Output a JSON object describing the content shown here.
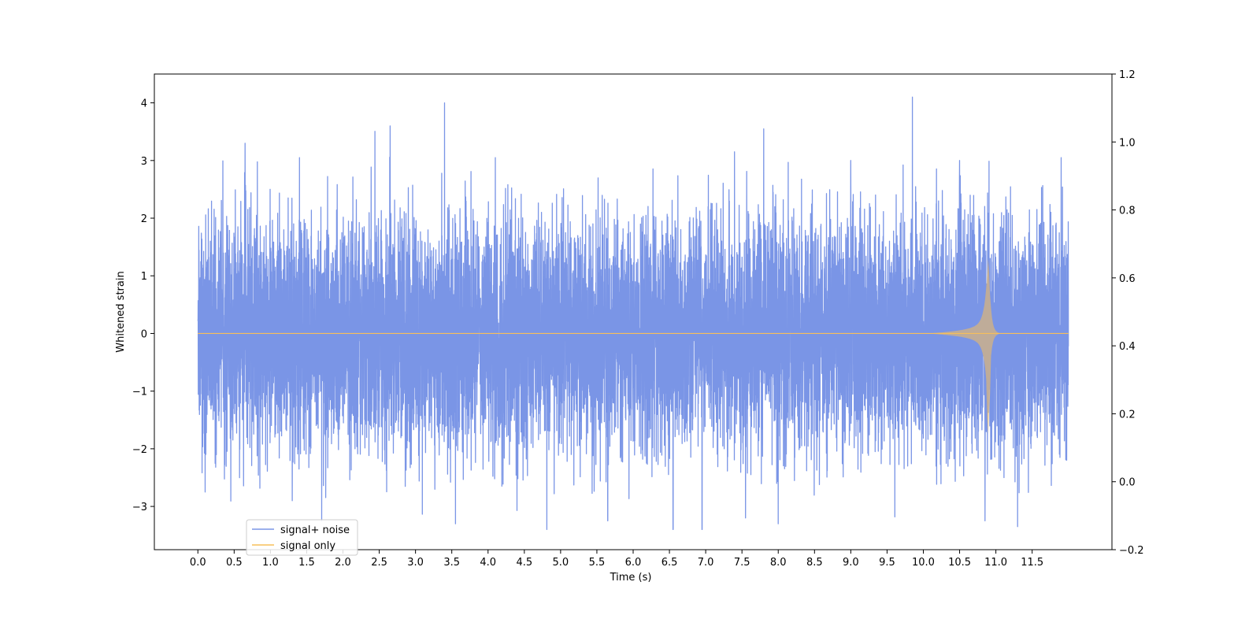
{
  "chart_data": {
    "type": "line",
    "title": "",
    "xlabel": "Time (s)",
    "ylabel": "Whitened strain",
    "xlim": [
      -0.6,
      12.6
    ],
    "ylim": [
      -3.75,
      4.5
    ],
    "y2lim": [
      -0.2,
      1.2
    ],
    "xticks": [
      0.0,
      0.5,
      1.0,
      1.5,
      2.0,
      2.5,
      3.0,
      3.5,
      4.0,
      4.5,
      5.0,
      5.5,
      6.0,
      6.5,
      7.0,
      7.5,
      8.0,
      8.5,
      9.0,
      9.5,
      10.0,
      10.5,
      11.0,
      11.5
    ],
    "xtick_labels": [
      "0.0",
      "0.5",
      "1.0",
      "1.5",
      "2.0",
      "2.5",
      "3.0",
      "3.5",
      "4.0",
      "4.5",
      "5.0",
      "5.5",
      "6.0",
      "6.5",
      "7.0",
      "7.5",
      "8.0",
      "8.5",
      "9.0",
      "9.5",
      "10.0",
      "10.5",
      "11.0",
      "11.5"
    ],
    "yticks": [
      -3,
      -2,
      -1,
      0,
      1,
      2,
      3,
      4
    ],
    "ytick_labels": [
      "−3",
      "−2",
      "−1",
      "0",
      "1",
      "2",
      "3",
      "4"
    ],
    "y2ticks": [
      -0.2,
      0.0,
      0.2,
      0.4,
      0.6,
      0.8,
      1.0,
      1.2
    ],
    "y2tick_labels": [
      "−0.2",
      "0.0",
      "0.2",
      "0.4",
      "0.6",
      "0.8",
      "1.0",
      "1.2"
    ],
    "grid": false,
    "legend_placement": "lower-left",
    "series": [
      {
        "name": "signal+ noise",
        "color": "#7a95e6",
        "t_range": [
          0.0,
          12.0
        ],
        "envelope_typical": 1.8,
        "min": -3.4,
        "max": 4.1,
        "spikes": [
          [
            0.65,
            3.3
          ],
          [
            1.4,
            3.05
          ],
          [
            2.65,
            3.6
          ],
          [
            3.4,
            4.0
          ],
          [
            4.1,
            3.05
          ],
          [
            7.8,
            3.55
          ],
          [
            9.85,
            4.1
          ],
          [
            9.0,
            3.0
          ],
          [
            10.5,
            3.0
          ],
          [
            11.9,
            3.05
          ],
          [
            3.55,
            -3.3
          ],
          [
            6.55,
            -3.4
          ],
          [
            6.95,
            -3.4
          ],
          [
            7.55,
            -3.2
          ],
          [
            8.0,
            -3.3
          ],
          [
            10.85,
            -3.25
          ],
          [
            11.3,
            -3.35
          ],
          [
            5.65,
            -3.25
          ],
          [
            0.1,
            -2.75
          ],
          [
            1.3,
            -2.9
          ]
        ]
      },
      {
        "name": "signal only",
        "color": "#f7bf5a",
        "t_range": [
          0.0,
          12.0
        ],
        "chirp_peak_time": 10.9,
        "chirp_peak_amplitude": 1.3,
        "amplitude_at_6s": 0.03,
        "amplitude_at_9s": 0.2,
        "amplitude_at_10_5s": 0.5,
        "ringdown_end_time": 11.05
      }
    ]
  }
}
